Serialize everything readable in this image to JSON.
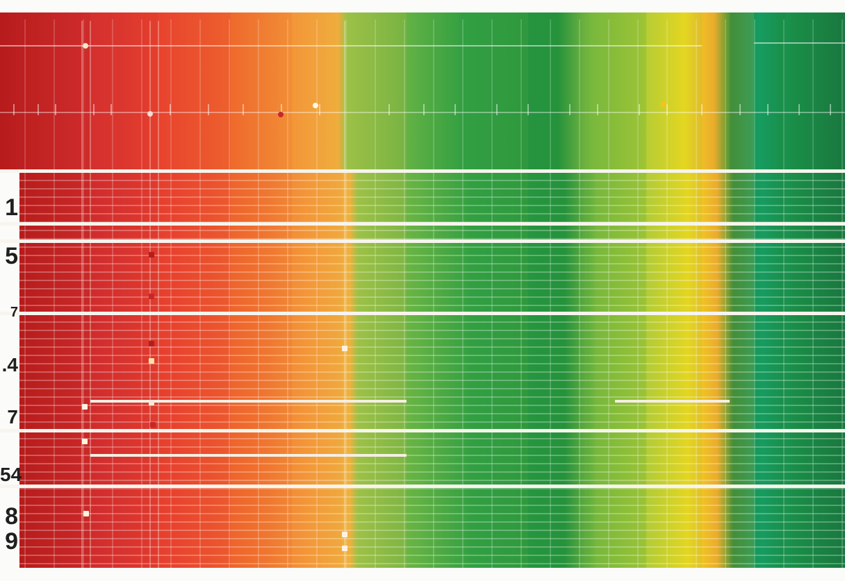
{
  "chart_data": {
    "type": "heatmap",
    "title": "",
    "xlabel": "",
    "ylabel": "",
    "row_labels": [
      "1",
      "5",
      "7",
      ".4",
      "7",
      "54",
      "8",
      "9"
    ],
    "color_scale": [
      "#b71c1c",
      "#d32f2f",
      "#e8442f",
      "#f07a2e",
      "#f3a33a",
      "#efb63f",
      "#7cb342",
      "#43a047",
      "#1b9a3e",
      "#9ccc3c",
      "#f4d71c",
      "#e8a530",
      "#1e8c3a",
      "#17a768",
      "#1e7a3a"
    ],
    "grid": true,
    "legend": "none"
  }
}
